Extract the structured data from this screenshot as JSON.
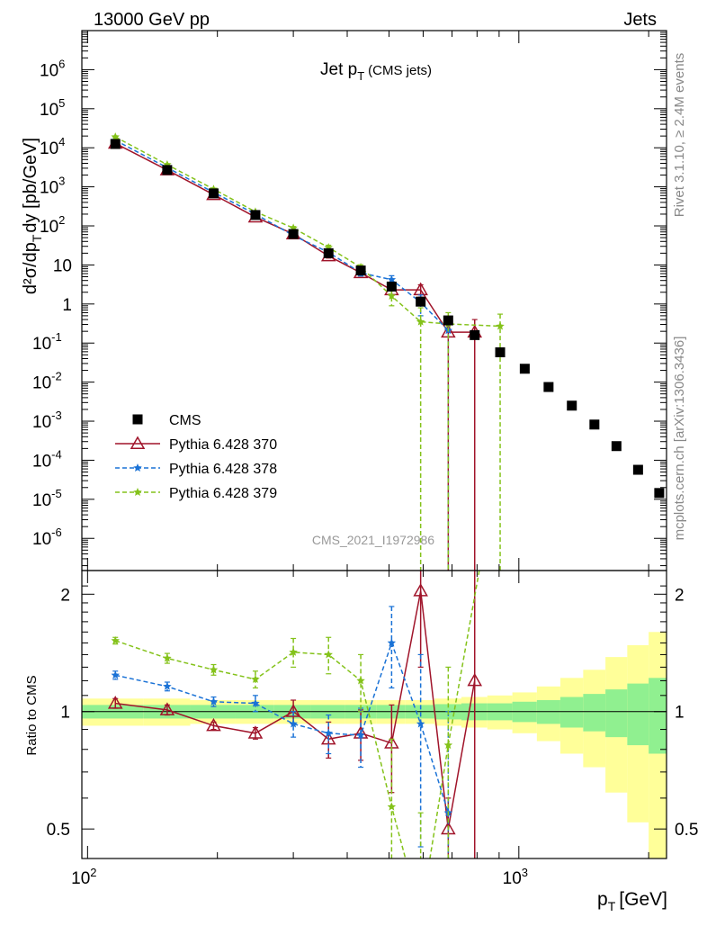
{
  "header": {
    "left": "13000 GeV pp",
    "right": "Jets"
  },
  "side_labels": {
    "rivet": "Rivet 3.1.10, ≥ 2.4M events",
    "mcplots": "mcplots.cern.ch [arXiv:1306.3436]"
  },
  "watermark": "CMS_2021_I1972986",
  "chart_data": [
    {
      "type": "scatter",
      "title": {
        "main": "Jet p",
        "sub": "T",
        "suffix": "(CMS jets)"
      },
      "ylabel": {
        "text": "d²σ/dp",
        "sub": "T",
        "suffix": "dy [pb/GeV]"
      },
      "xlabel": {
        "text": "p",
        "sub": "T",
        "suffix": "[GeV]"
      },
      "x_scale": "log",
      "y_scale": "log",
      "xlim": [
        97,
        2200
      ],
      "ylim": [
        1.5e-07,
        10000000.0
      ],
      "y_tick_labels": [
        {
          "v": 1000000.0,
          "m": "10",
          "e": "6"
        },
        {
          "v": 100000.0,
          "m": "10",
          "e": "5"
        },
        {
          "v": 10000.0,
          "m": "10",
          "e": "4"
        },
        {
          "v": 1000.0,
          "m": "10",
          "e": "3"
        },
        {
          "v": 100.0,
          "m": "10",
          "e": "2"
        },
        {
          "v": 10,
          "m": "10",
          "e": ""
        },
        {
          "v": 1,
          "m": "1",
          "e": ""
        },
        {
          "v": 0.1,
          "m": "10",
          "e": "-1"
        },
        {
          "v": 0.01,
          "m": "10",
          "e": "-2"
        },
        {
          "v": 0.001,
          "m": "10",
          "e": "-3"
        },
        {
          "v": 0.0001,
          "m": "10",
          "e": "-4"
        },
        {
          "v": 1e-05,
          "m": "10",
          "e": "-5"
        },
        {
          "v": 1e-06,
          "m": "10",
          "e": "-6"
        }
      ],
      "legend_position": "left",
      "series": [
        {
          "name": "CMS",
          "color": "#000000",
          "marker": "square",
          "points": [
            {
              "x": 116,
              "y": 12500
            },
            {
              "x": 153,
              "y": 2700
            },
            {
              "x": 196,
              "y": 680
            },
            {
              "x": 245,
              "y": 190
            },
            {
              "x": 300,
              "y": 62
            },
            {
              "x": 362,
              "y": 20
            },
            {
              "x": 430,
              "y": 7.2
            },
            {
              "x": 507,
              "y": 2.8
            },
            {
              "x": 592,
              "y": 1.15
            },
            {
              "x": 686,
              "y": 0.38
            },
            {
              "x": 790,
              "y": 0.16
            },
            {
              "x": 905,
              "y": 0.058
            },
            {
              "x": 1032,
              "y": 0.022
            },
            {
              "x": 1172,
              "y": 0.0075
            },
            {
              "x": 1327,
              "y": 0.0025
            },
            {
              "x": 1497,
              "y": 0.00082
            },
            {
              "x": 1684,
              "y": 0.00023
            },
            {
              "x": 1890,
              "y": 5.7e-05
            },
            {
              "x": 2116,
              "y": 1.45e-05
            }
          ]
        },
        {
          "name": "Pythia 6.428 370",
          "color": "#a0142a",
          "marker": "triangle",
          "dash": "",
          "points": [
            {
              "x": 116,
              "y": 13000,
              "lo": 12500,
              "hi": 13500
            },
            {
              "x": 153,
              "y": 2700,
              "lo": 2600,
              "hi": 2800
            },
            {
              "x": 196,
              "y": 630,
              "lo": 600,
              "hi": 660
            },
            {
              "x": 245,
              "y": 168,
              "lo": 158,
              "hi": 178
            },
            {
              "x": 300,
              "y": 62,
              "lo": 58,
              "hi": 66
            },
            {
              "x": 362,
              "y": 17,
              "lo": 15,
              "hi": 19
            },
            {
              "x": 430,
              "y": 6.3,
              "lo": 5.4,
              "hi": 7.2
            },
            {
              "x": 507,
              "y": 2.3,
              "lo": 1.7,
              "hi": 2.9
            },
            {
              "x": 592,
              "y": 2.3,
              "lo": 1.5,
              "hi": 3.1
            },
            {
              "x": 686,
              "y": 0.19,
              "lo": 1e-09,
              "hi": 0.35
            },
            {
              "x": 790,
              "y": 0.19,
              "lo": 1e-09,
              "hi": 0.4
            }
          ]
        },
        {
          "name": "Pythia 6.428 378",
          "color": "#1a72d6",
          "marker": "star",
          "dash": "5,3",
          "points": [
            {
              "x": 116,
              "y": 15500,
              "lo": 15000,
              "hi": 16000
            },
            {
              "x": 153,
              "y": 3100,
              "lo": 3000,
              "hi": 3200
            },
            {
              "x": 196,
              "y": 720,
              "lo": 690,
              "hi": 750
            },
            {
              "x": 245,
              "y": 200,
              "lo": 188,
              "hi": 212
            },
            {
              "x": 300,
              "y": 57,
              "lo": 52,
              "hi": 62
            },
            {
              "x": 362,
              "y": 21,
              "lo": 18,
              "hi": 24
            },
            {
              "x": 430,
              "y": 6.3,
              "lo": 5.2,
              "hi": 7.4
            },
            {
              "x": 507,
              "y": 4.2,
              "lo": 3.1,
              "hi": 5.3
            },
            {
              "x": 592,
              "y": 1.1,
              "lo": 0.5,
              "hi": 1.7
            },
            {
              "x": 686,
              "y": 0.21,
              "lo": 1e-09,
              "hi": 0.4
            }
          ]
        },
        {
          "name": "Pythia 6.428 379",
          "color": "#84c21a",
          "marker": "star",
          "dash": "5,3",
          "points": [
            {
              "x": 116,
              "y": 19000,
              "lo": 18300,
              "hi": 19700
            },
            {
              "x": 153,
              "y": 3700,
              "lo": 3550,
              "hi": 3850
            },
            {
              "x": 196,
              "y": 870,
              "lo": 830,
              "hi": 910
            },
            {
              "x": 245,
              "y": 230,
              "lo": 215,
              "hi": 245
            },
            {
              "x": 300,
              "y": 88,
              "lo": 80,
              "hi": 96
            },
            {
              "x": 362,
              "y": 28,
              "lo": 24,
              "hi": 32
            },
            {
              "x": 430,
              "y": 8.7,
              "lo": 7.3,
              "hi": 10.1
            },
            {
              "x": 507,
              "y": 1.6,
              "lo": 0.9,
              "hi": 2.3
            },
            {
              "x": 592,
              "y": 0.35,
              "lo": 1e-09,
              "hi": 0.8
            },
            {
              "x": 686,
              "y": 0.31,
              "lo": 1e-09,
              "hi": 0.6
            },
            {
              "x": 905,
              "y": 0.27,
              "lo": 1e-09,
              "hi": 0.55
            }
          ]
        }
      ]
    },
    {
      "type": "line",
      "ylabel": "Ratio to CMS",
      "x_scale": "log",
      "y_scale": "log",
      "xlim": [
        97,
        2200
      ],
      "ylim": [
        0.42,
        2.3
      ],
      "y_tick_labels": [
        {
          "v": 0.5,
          "label": "0.5"
        },
        {
          "v": 1,
          "label": "1"
        },
        {
          "v": 2,
          "label": "2"
        }
      ],
      "x_tick_labels": [
        {
          "v": 100,
          "m": "10",
          "e": "2"
        },
        {
          "v": 1000,
          "m": "10",
          "e": "3"
        }
      ],
      "bands": {
        "edges": [
          97,
          135,
          173,
          220,
          270,
          330,
          396,
          468,
          546,
          638,
          736,
          845,
          966,
          1101,
          1248,
          1410,
          1588,
          1784,
          2000,
          2200
        ],
        "green_halfwidth": [
          0.04,
          0.04,
          0.04,
          0.04,
          0.04,
          0.04,
          0.04,
          0.04,
          0.04,
          0.045,
          0.05,
          0.05,
          0.06,
          0.07,
          0.09,
          0.11,
          0.14,
          0.18,
          0.22
        ],
        "yellow_halfwidth": [
          0.08,
          0.08,
          0.07,
          0.07,
          0.07,
          0.07,
          0.07,
          0.07,
          0.07,
          0.08,
          0.09,
          0.1,
          0.12,
          0.16,
          0.22,
          0.28,
          0.38,
          0.48,
          0.6
        ],
        "green_color": "#90f090",
        "yellow_color": "#ffff99"
      },
      "series": [
        {
          "name": "Pythia 6.428 370",
          "color": "#a0142a",
          "marker": "triangle",
          "dash": "",
          "points": [
            {
              "x": 116,
              "y": 1.05,
              "lo": 1.02,
              "hi": 1.08
            },
            {
              "x": 153,
              "y": 1.01,
              "lo": 0.98,
              "hi": 1.04
            },
            {
              "x": 196,
              "y": 0.92,
              "lo": 0.9,
              "hi": 0.94
            },
            {
              "x": 245,
              "y": 0.88,
              "lo": 0.85,
              "hi": 0.91
            },
            {
              "x": 300,
              "y": 1.0,
              "lo": 0.93,
              "hi": 1.07
            },
            {
              "x": 362,
              "y": 0.85,
              "lo": 0.76,
              "hi": 0.94
            },
            {
              "x": 430,
              "y": 0.88,
              "lo": 0.75,
              "hi": 1.01
            },
            {
              "x": 507,
              "y": 0.83,
              "lo": 0.62,
              "hi": 1.04
            },
            {
              "x": 592,
              "y": 2.04,
              "lo": 1.3,
              "hi": 2.6
            },
            {
              "x": 686,
              "y": 0.5,
              "lo": 0.3,
              "hi": 0.6
            },
            {
              "x": 790,
              "y": 1.2,
              "lo": 0.3,
              "hi": 2.4
            }
          ]
        },
        {
          "name": "Pythia 6.428 378",
          "color": "#1a72d6",
          "marker": "star",
          "dash": "5,3",
          "points": [
            {
              "x": 116,
              "y": 1.24,
              "lo": 1.21,
              "hi": 1.27
            },
            {
              "x": 153,
              "y": 1.16,
              "lo": 1.13,
              "hi": 1.19
            },
            {
              "x": 196,
              "y": 1.06,
              "lo": 1.03,
              "hi": 1.09
            },
            {
              "x": 245,
              "y": 1.05,
              "lo": 1.0,
              "hi": 1.1
            },
            {
              "x": 300,
              "y": 0.93,
              "lo": 0.86,
              "hi": 1.0
            },
            {
              "x": 362,
              "y": 0.88,
              "lo": 0.78,
              "hi": 0.98
            },
            {
              "x": 430,
              "y": 0.87,
              "lo": 0.72,
              "hi": 1.02
            },
            {
              "x": 507,
              "y": 1.5,
              "lo": 1.15,
              "hi": 1.86
            },
            {
              "x": 592,
              "y": 0.93,
              "lo": 0.45,
              "hi": 1.4
            },
            {
              "x": 686,
              "y": 0.55,
              "lo": 0.3,
              "hi": 1.0
            }
          ]
        },
        {
          "name": "Pythia 6.428 379",
          "color": "#84c21a",
          "marker": "star",
          "dash": "5,3",
          "points": [
            {
              "x": 116,
              "y": 1.52,
              "lo": 1.49,
              "hi": 1.55
            },
            {
              "x": 153,
              "y": 1.37,
              "lo": 1.33,
              "hi": 1.41
            },
            {
              "x": 196,
              "y": 1.28,
              "lo": 1.24,
              "hi": 1.32
            },
            {
              "x": 245,
              "y": 1.21,
              "lo": 1.15,
              "hi": 1.27
            },
            {
              "x": 300,
              "y": 1.42,
              "lo": 1.3,
              "hi": 1.54
            },
            {
              "x": 362,
              "y": 1.4,
              "lo": 1.25,
              "hi": 1.55
            },
            {
              "x": 430,
              "y": 1.2,
              "lo": 1.0,
              "hi": 1.4
            },
            {
              "x": 507,
              "y": 0.57,
              "lo": 0.3,
              "hi": 0.85
            },
            {
              "x": 592,
              "y": 0.3,
              "lo": 0.1,
              "hi": 0.55
            },
            {
              "x": 686,
              "y": 0.82,
              "lo": 0.3,
              "hi": 1.3
            },
            {
              "x": 905,
              "y": 4.6,
              "lo": 2.5,
              "hi": 7
            }
          ]
        }
      ]
    }
  ]
}
